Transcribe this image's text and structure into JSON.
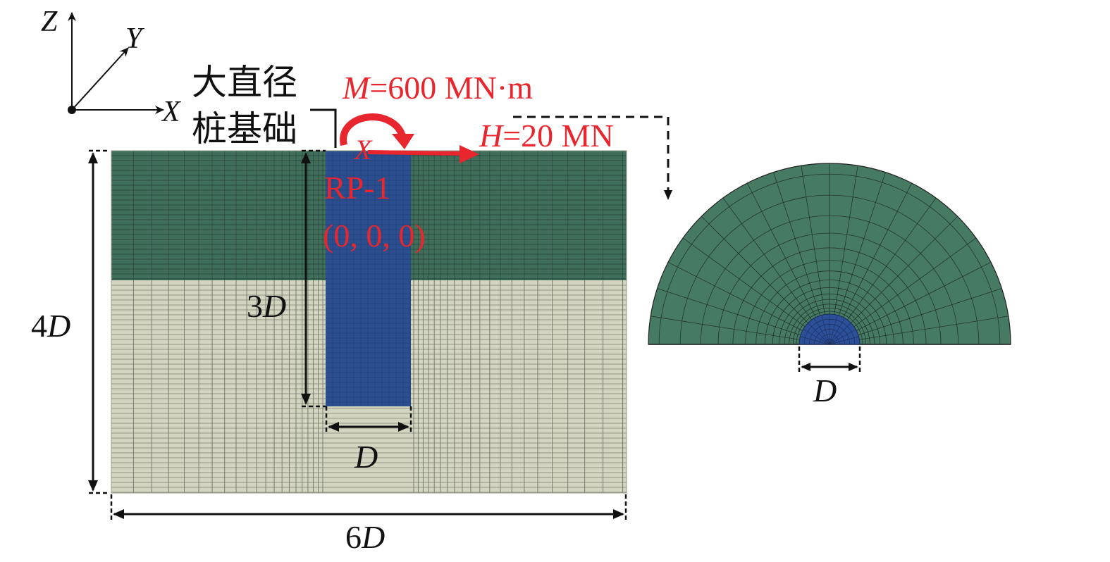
{
  "axes": {
    "z": "Z",
    "y": "Y",
    "x": "X"
  },
  "pile_label": {
    "line1": "大直径",
    "line2": "桩基础"
  },
  "moment": {
    "symbol": "M",
    "value": "=600 MN·m"
  },
  "horizontal_load": {
    "symbol": "H",
    "value": "=20 MN"
  },
  "reference_point": {
    "axis_marker": "X",
    "name": "RP-1",
    "coords": "(0, 0, 0)"
  },
  "dimensions": {
    "pile_depth_num": "3",
    "soil_depth_num": "4",
    "width_num": "6",
    "pile_diameter": "D",
    "plan_diameter": "D",
    "unit_symbol": "D"
  },
  "colors": {
    "upper_soil": "#3f6e5b",
    "lower_soil": "#d3d5c0",
    "pile": "#2b4e8e",
    "plan_soil": "#467a63",
    "plan_pile": "#2c4f9a",
    "load": "#e8262d"
  }
}
